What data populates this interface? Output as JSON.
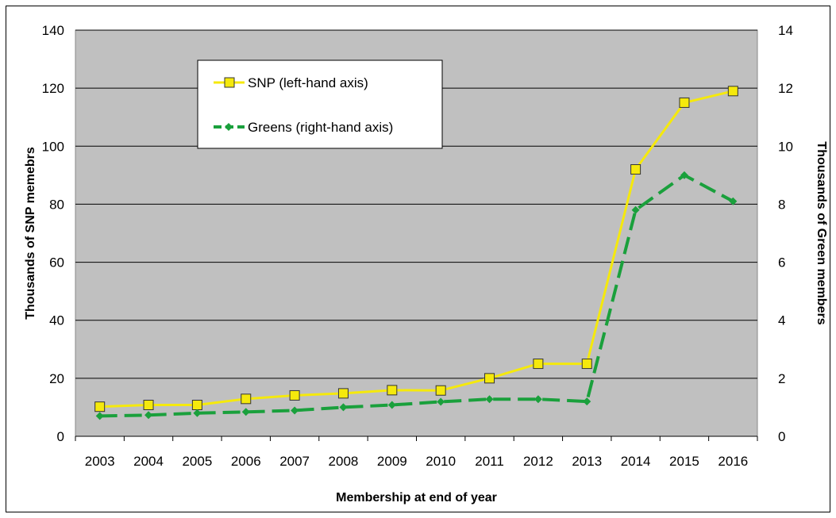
{
  "chart_data": {
    "type": "line",
    "x": [
      "2003",
      "2004",
      "2005",
      "2006",
      "2007",
      "2008",
      "2009",
      "2010",
      "2011",
      "2012",
      "2013",
      "2014",
      "2015",
      "2016"
    ],
    "series": [
      {
        "name": "SNP (left-hand axis)",
        "axis": "left",
        "color": "#f5e90c",
        "marker": "square",
        "values": [
          10.2,
          10.8,
          10.8,
          12.9,
          14.1,
          14.8,
          15.9,
          15.8,
          20.0,
          25.0,
          25.0,
          92.0,
          115.0,
          119.0
        ]
      },
      {
        "name": "Greens (right-hand axis)",
        "axis": "right",
        "color": "#1aa03c",
        "marker": "diamond",
        "dashed": true,
        "values": [
          0.7,
          0.73,
          0.8,
          0.84,
          0.89,
          1.0,
          1.08,
          1.19,
          1.28,
          1.28,
          1.2,
          7.8,
          9.0,
          8.1
        ]
      }
    ],
    "xlabel": "Membership at end of year",
    "ylabel_left": "Thousands of SNP memebrs",
    "ylabel_right": "Thousands of Green members",
    "ylim_left": [
      0,
      140
    ],
    "ylim_right": [
      0,
      14
    ],
    "yticks_left": [
      "0",
      "20",
      "40",
      "60",
      "80",
      "100",
      "120",
      "140"
    ],
    "yticks_right": [
      "0",
      "2",
      "4",
      "6",
      "8",
      "10",
      "12",
      "14"
    ],
    "grid": true,
    "plot_background": "#c0c0c0",
    "legend_position": "top-left inside"
  }
}
